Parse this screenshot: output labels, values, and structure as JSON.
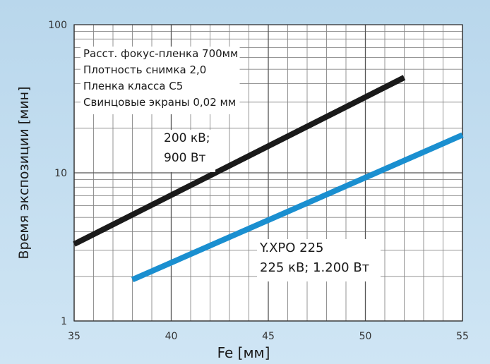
{
  "chart_data": {
    "type": "line",
    "xlabel": "Fe [мм]",
    "ylabel": "Время экспозиции [мин]",
    "xlim": [
      35,
      55
    ],
    "ylim": [
      1,
      100
    ],
    "yscale": "log",
    "grid": true,
    "x_ticks": [
      "35",
      "40",
      "45",
      "50",
      "55"
    ],
    "y_ticks": [
      "1",
      "10",
      "100"
    ],
    "conditions": [
      "Расст. фокус-пленка 700мм",
      "Плотность снимка 2,0",
      "Пленка класса C5",
      "Свинцовые экраны 0,02 мм"
    ],
    "series": [
      {
        "label_lines": [
          "200 кВ;",
          "900 Вт"
        ],
        "color": "#1a1a1a",
        "x": [
          35,
          52
        ],
        "y": [
          3.3,
          44
        ]
      },
      {
        "label_lines": [
          "Y.XPO 225",
          "225 кВ; 1.200 Вт"
        ],
        "color": "#1a8fd0",
        "x": [
          38,
          55
        ],
        "y": [
          1.9,
          18
        ]
      }
    ]
  }
}
